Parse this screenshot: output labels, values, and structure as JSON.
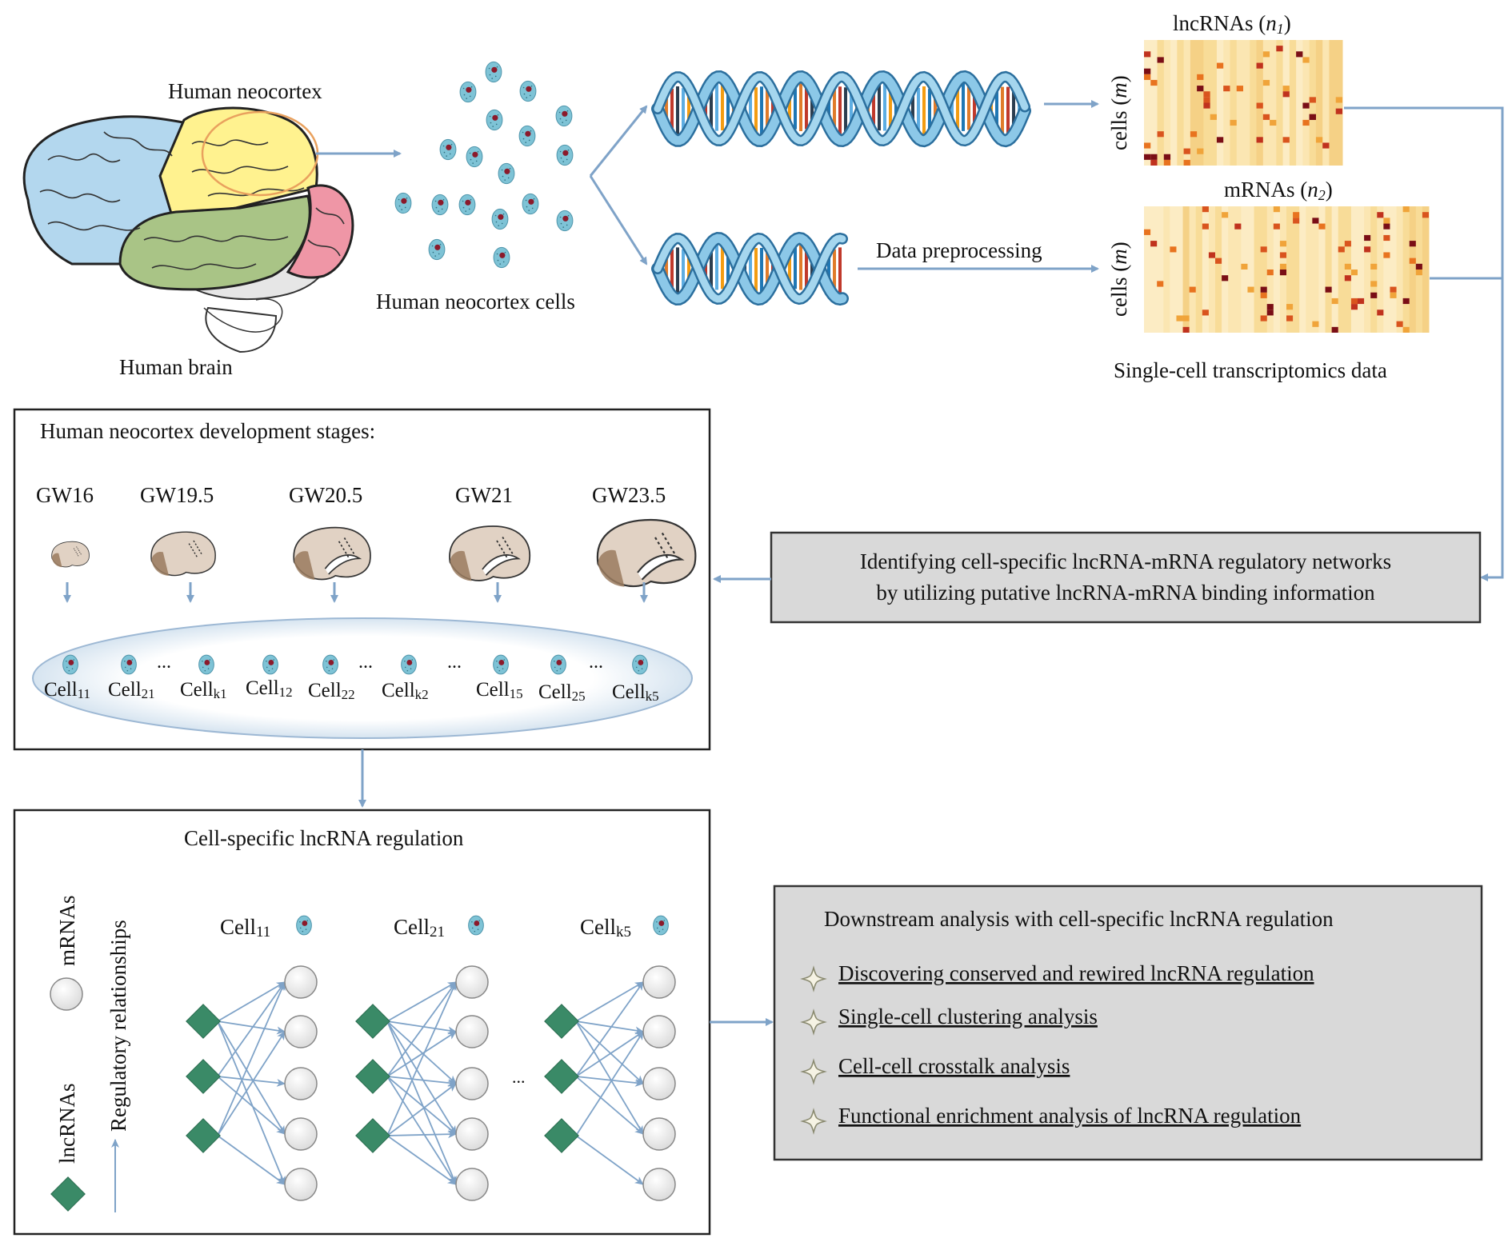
{
  "brain": {
    "neocortex_label": "Human neocortex",
    "brain_label": "Human brain",
    "cells_label": "Human neocortex cells"
  },
  "data": {
    "lnc_title": "lncRNAs (",
    "lnc_n": "n",
    "lnc_sub": "1",
    "mrna_title": "mRNAs (",
    "mrna_n": "n",
    "mrna_sub": "2",
    "close_paren": ")",
    "cells_axis": "cells (",
    "cells_m": "m",
    "preprocessing": "Data preprocessing",
    "transcriptomics": "Single-cell transcriptomics data"
  },
  "identify": {
    "line1": "Identifying cell-specific lncRNA-mRNA regulatory networks",
    "line2": "by utilizing putative lncRNA-mRNA binding information"
  },
  "stages": {
    "title": "Human neocortex development stages:",
    "weeks": [
      "GW16",
      "GW19.5",
      "GW20.5",
      "GW21",
      "GW23.5"
    ],
    "ellipsis": "...",
    "cells": [
      {
        "base": "Cell",
        "sub": "11"
      },
      {
        "base": "Cell",
        "sub": "21"
      },
      {
        "base": "Cell",
        "sub": "k1"
      },
      {
        "base": "Cell",
        "sub": "12"
      },
      {
        "base": "Cell",
        "sub": "22"
      },
      {
        "base": "Cell",
        "sub": "k2"
      },
      {
        "base": "Cell",
        "sub": "15"
      },
      {
        "base": "Cell",
        "sub": "25"
      },
      {
        "base": "Cell",
        "sub": "k5"
      }
    ]
  },
  "regulation": {
    "title": "Cell-specific  lncRNA regulation",
    "legend_mrna": "mRNAs",
    "legend_lnc": "lncRNAs",
    "legend_rel": "Regulatory relationships",
    "ellipsis": "...",
    "cells": [
      {
        "base": "Cell",
        "sub": "11"
      },
      {
        "base": "Cell",
        "sub": "21"
      },
      {
        "base": "Cell",
        "sub": "k5"
      }
    ]
  },
  "downstream": {
    "title": "Downstream analysis with cell-specific lncRNA regulation",
    "items": [
      "Discovering conserved and rewired lncRNA regulation",
      "Single-cell clustering analysis",
      "Cell-cell crosstalk analysis",
      "Functional enrichment analysis of lncRNA regulation"
    ]
  },
  "colors": {
    "arrow": "#7fa3c8",
    "cell_fill": "#7ec3d6",
    "cell_nucleus": "#8b1a2b",
    "diamond": "#3a8a67",
    "node_fill": "#eeeeee",
    "panel_gray": "#d9d9d9",
    "brain_frontal": "#b3d7ee",
    "brain_parietal": "#fff28f",
    "brain_temporal": "#a9c486",
    "brain_occipital": "#ef96a6",
    "heatmap_base": "#f8dc98"
  }
}
